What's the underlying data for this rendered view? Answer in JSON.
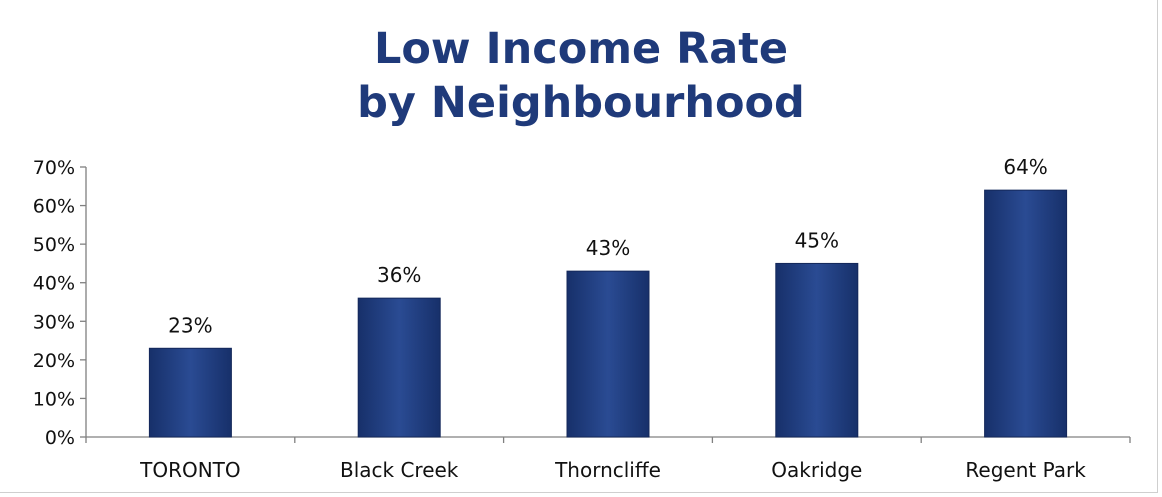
{
  "chart_data": {
    "type": "bar",
    "title": [
      "Low Income Rate",
      "by Neighbourhood"
    ],
    "categories": [
      "TORONTO",
      "Black Creek",
      "Thorncliffe",
      "Oakridge",
      "Regent Park"
    ],
    "values": [
      23,
      36,
      43,
      45,
      64
    ],
    "value_labels": [
      "23%",
      "36%",
      "43%",
      "45%",
      "64%"
    ],
    "ylim": [
      0,
      70
    ],
    "yticks": [
      0,
      10,
      20,
      30,
      40,
      50,
      60,
      70
    ],
    "ytick_labels": [
      "0%",
      "10%",
      "20%",
      "30%",
      "40%",
      "50%",
      "60%",
      "70%"
    ],
    "grid": false,
    "bar_color": "#213f82",
    "bar_edge_color": "#14285a",
    "title_color": "#1f3a7a"
  }
}
